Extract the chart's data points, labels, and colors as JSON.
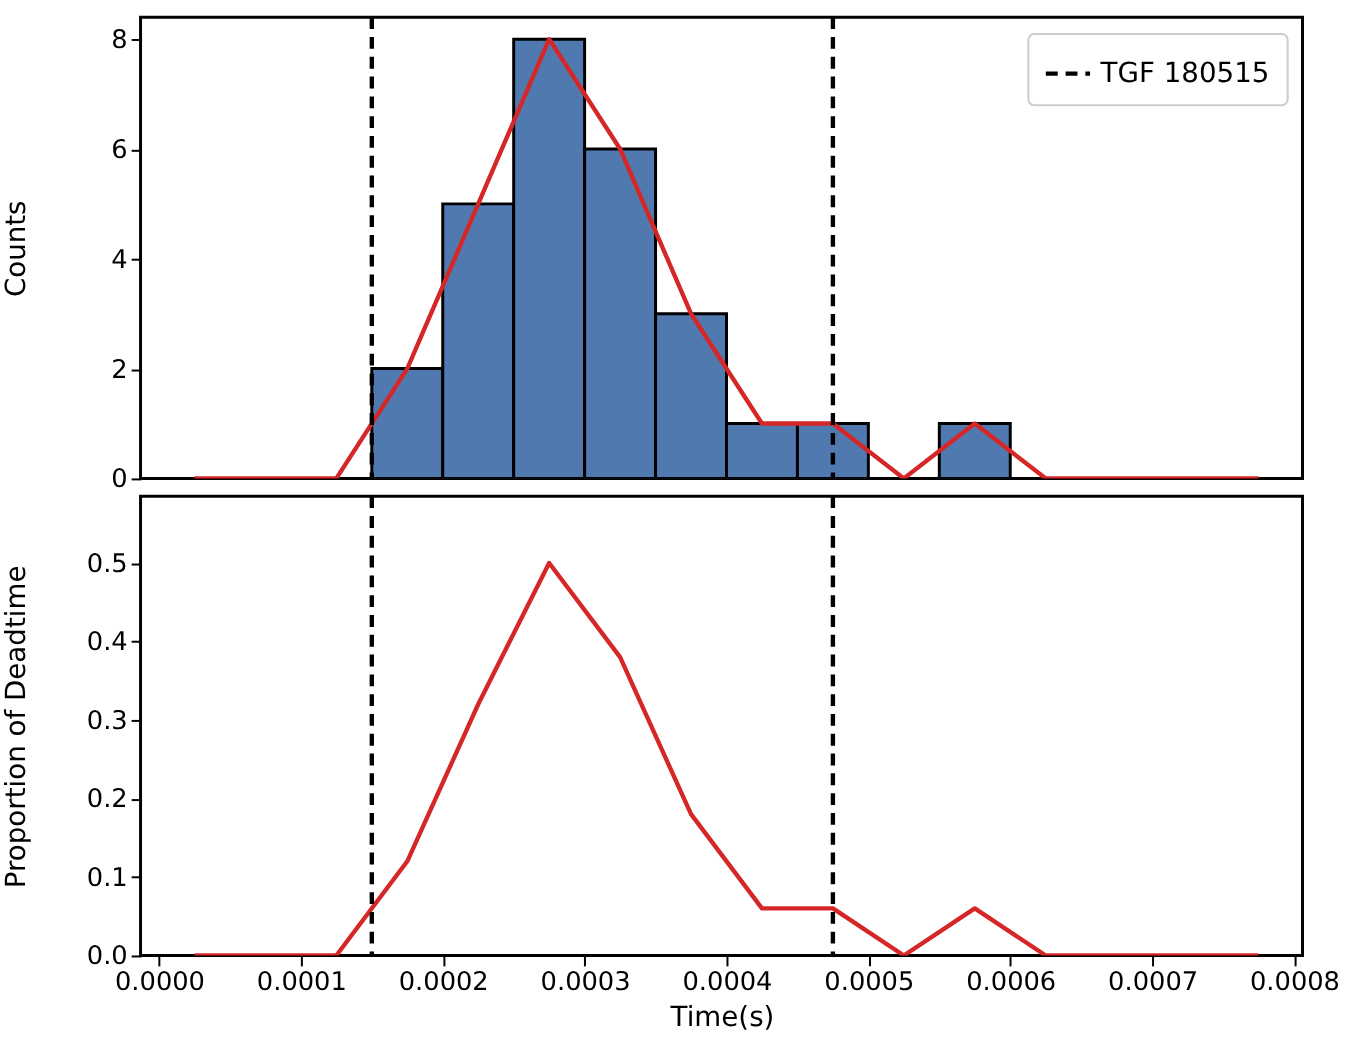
{
  "chart_data": [
    {
      "type": "histogram",
      "ylabel": "Counts",
      "xlim": [
        -1.3e-05,
        0.000806
      ],
      "ylim": [
        0,
        8.4
      ],
      "yticks": [
        0,
        2,
        4,
        6,
        8
      ],
      "tick_labels": "y",
      "grid": false,
      "legend": "top right",
      "series": [
        {
          "color": "#5079af",
          "bins": [
            0.00015,
            0.0002,
            0.00025,
            0.0003,
            0.00035,
            0.0004,
            0.00045,
            0.0005,
            0.00055,
            0.0006
          ],
          "values": [
            2,
            5,
            8,
            6,
            3,
            1,
            1,
            0,
            1
          ]
        },
        {
          "type": "line",
          "color": "#d62728",
          "x": [
            2.5e-05,
            7.5e-05,
            0.000125,
            0.000175,
            0.000225,
            0.000275,
            0.000325,
            0.000375,
            0.000425,
            0.000475,
            0.000525,
            0.000575,
            0.000625,
            0.000675,
            0.000725,
            0.000775
          ],
          "values": [
            0,
            0,
            0,
            2,
            5,
            8,
            6,
            3,
            1,
            1,
            0,
            1,
            0,
            0,
            0,
            0
          ]
        }
      ],
      "ref_lines": [
        {
          "axis": "x",
          "value": 0.00015,
          "label": "TGF 180515",
          "color": "#000000",
          "line_style": "dashed"
        },
        {
          "axis": "x",
          "value": 0.000475,
          "color": "#000000",
          "line_style": "dashed"
        }
      ]
    },
    {
      "type": "line",
      "xlabel": "Time(s)",
      "ylabel": "Proportion of Deadtime",
      "xlim": [
        -1.3e-05,
        0.000806
      ],
      "ylim": [
        0,
        0.585
      ],
      "grid": false,
      "xticks": [
        {
          "value": 0,
          "label": "0.0000"
        },
        {
          "value": 0.0001,
          "label": "0.0001"
        },
        {
          "value": 0.0002,
          "label": "0.0002"
        },
        {
          "value": 0.0003,
          "label": "0.0003"
        },
        {
          "value": 0.0004,
          "label": "0.0004"
        },
        {
          "value": 0.0005,
          "label": "0.0005"
        },
        {
          "value": 0.0006,
          "label": "0.0006"
        },
        {
          "value": 0.0007,
          "label": "0.0007"
        },
        {
          "value": 0.0008,
          "label": "0.0008"
        }
      ],
      "yticks": [
        {
          "value": 0,
          "label": "0.0"
        },
        0.1,
        0.2,
        0.3,
        0.4,
        0.5
      ],
      "series": [
        {
          "color": "#d62728",
          "x": [
            2.5e-05,
            7.5e-05,
            0.000125,
            0.000175,
            0.000225,
            0.000275,
            0.000325,
            0.000375,
            0.000425,
            0.000475,
            0.000525,
            0.000575,
            0.000625,
            0.000675,
            0.000725,
            0.000775
          ],
          "values": [
            0,
            0,
            0,
            0.12,
            0.32,
            0.5,
            0.38,
            0.18,
            0.06,
            0.06,
            0,
            0.06,
            0,
            0,
            0,
            0
          ]
        }
      ],
      "ref_lines": [
        {
          "axis": "x",
          "value": 0.00015,
          "color": "#000000",
          "line_style": "dashed"
        },
        {
          "axis": "x",
          "value": 0.000475,
          "color": "#000000",
          "line_style": "dashed"
        }
      ]
    }
  ]
}
